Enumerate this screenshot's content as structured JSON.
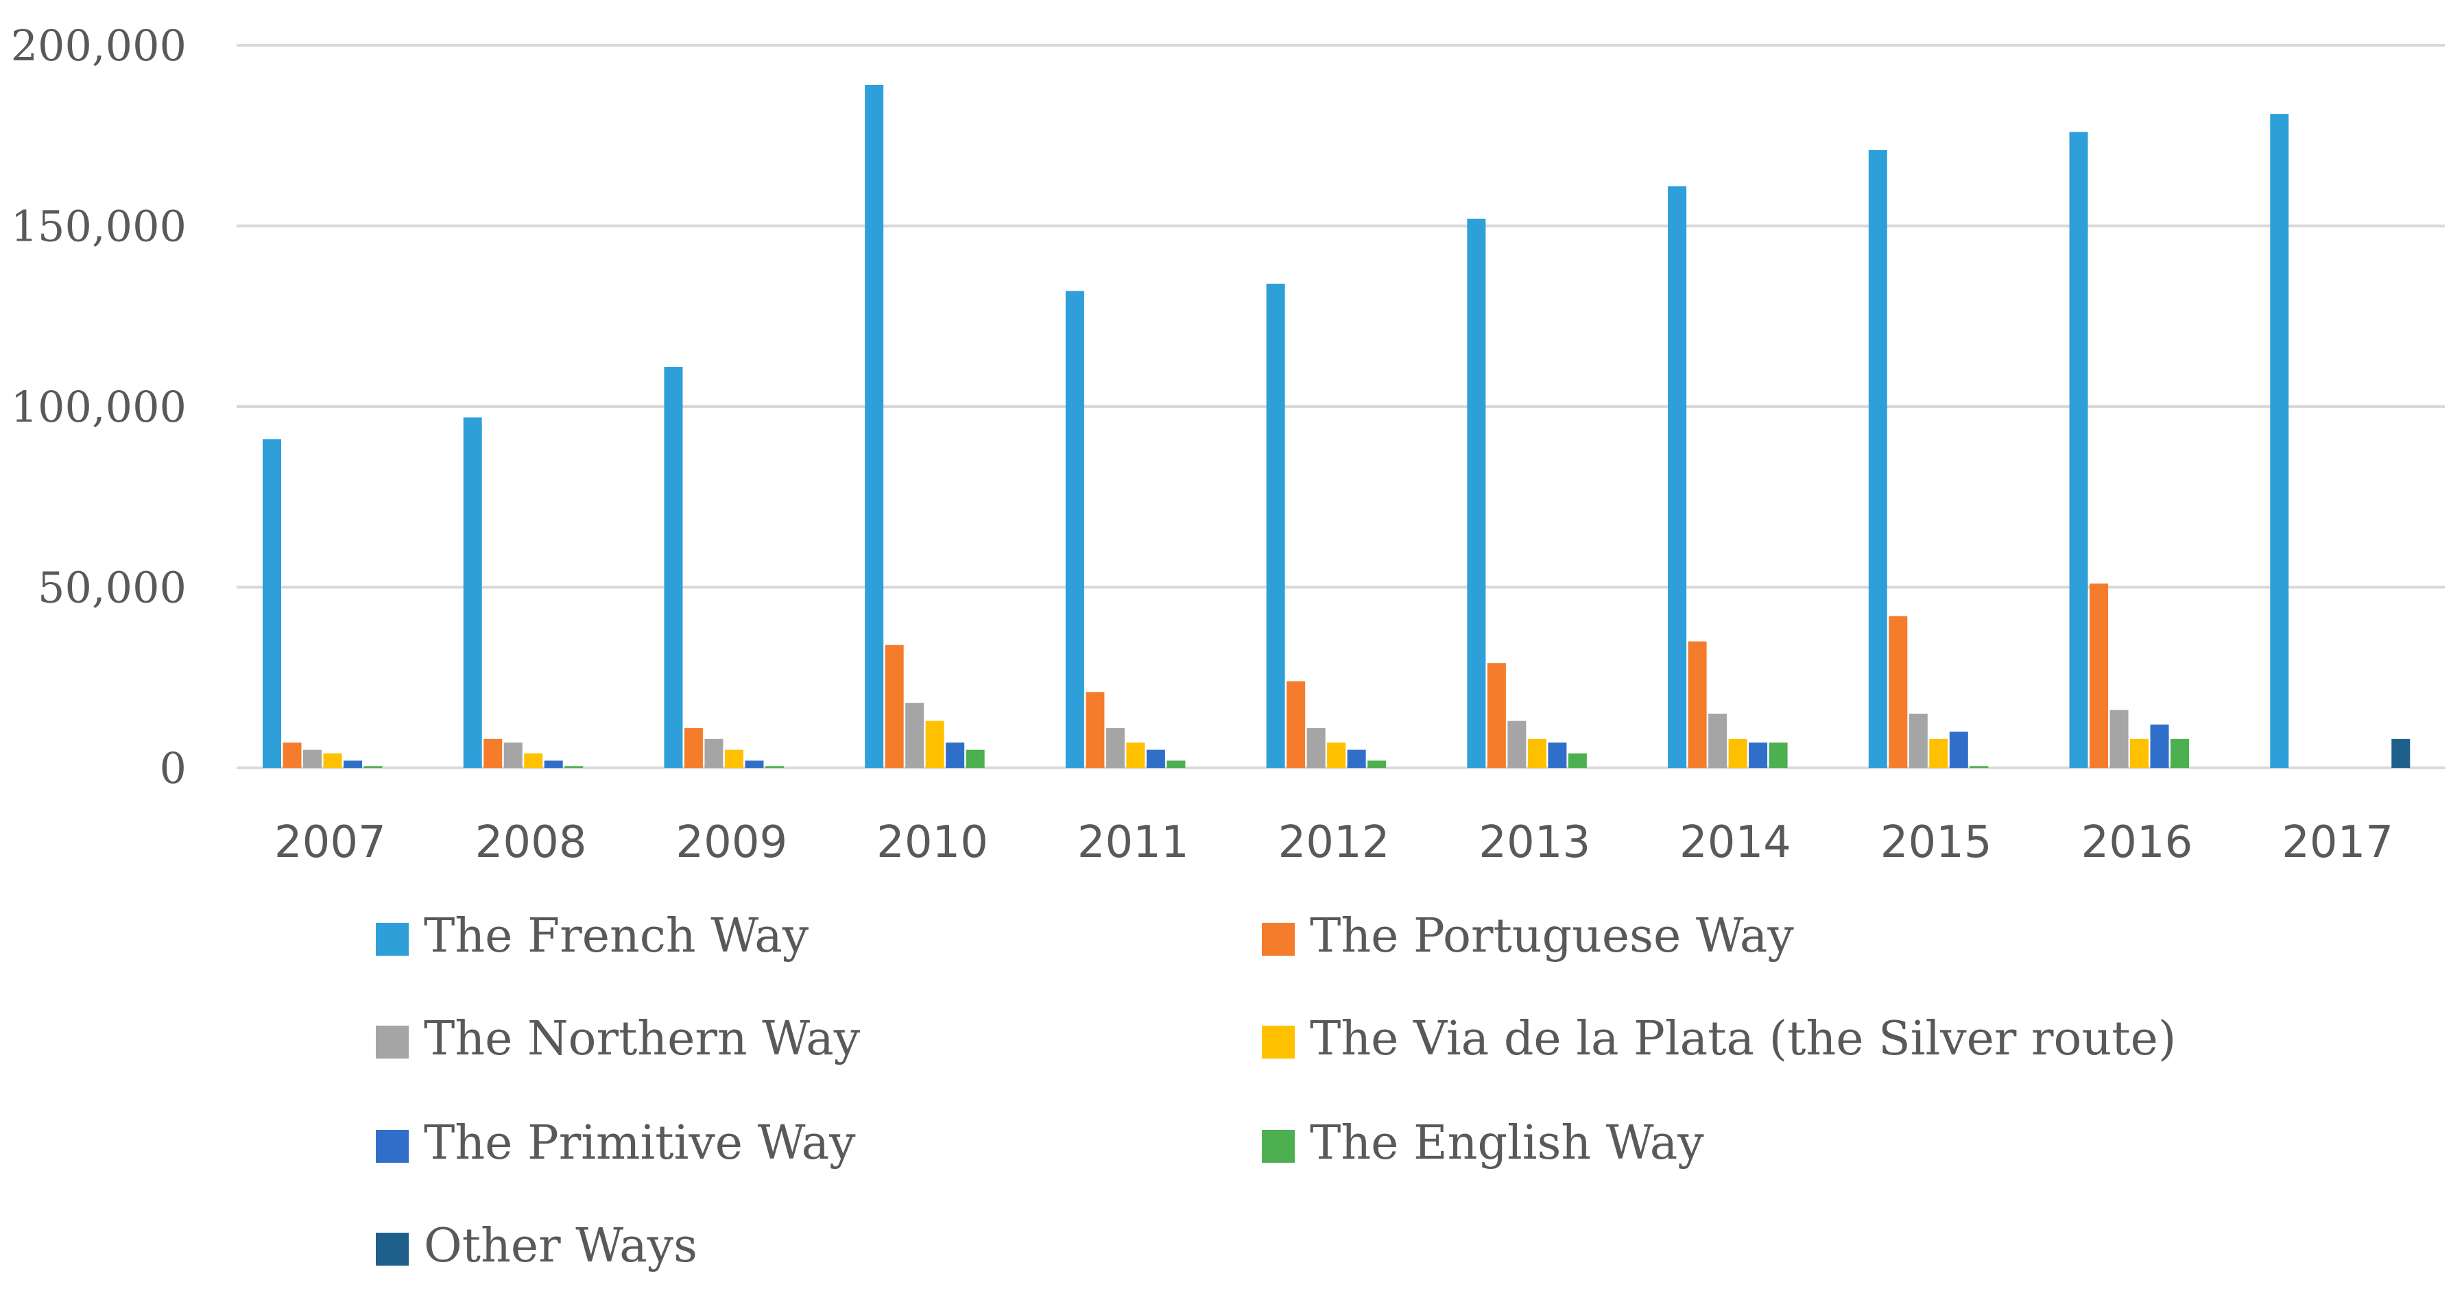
{
  "chart_data": {
    "type": "bar",
    "categories": [
      "2007",
      "2008",
      "2009",
      "2010",
      "2011",
      "2012",
      "2013",
      "2014",
      "2015",
      "2016",
      "2017"
    ],
    "series": [
      {
        "name": "The French Way",
        "color": "#2E9FD9",
        "values": [
          91000,
          97000,
          111000,
          189000,
          132000,
          134000,
          152000,
          161000,
          171000,
          176000,
          181000
        ]
      },
      {
        "name": "The Portuguese Way",
        "color": "#F47C2A",
        "values": [
          7000,
          8000,
          11000,
          34000,
          21000,
          24000,
          29000,
          35000,
          42000,
          51000,
          0
        ]
      },
      {
        "name": "The Northern Way",
        "color": "#A5A5A5",
        "values": [
          5000,
          7000,
          8000,
          18000,
          11000,
          11000,
          13000,
          15000,
          15000,
          16000,
          0
        ]
      },
      {
        "name": "The Via de la Plata (the Silver route)",
        "color": "#FFC000",
        "values": [
          4000,
          4000,
          5000,
          13000,
          7000,
          7000,
          8000,
          8000,
          8000,
          8000,
          0
        ]
      },
      {
        "name": "The Primitive Way",
        "color": "#2F6FC9",
        "values": [
          2000,
          2000,
          2000,
          7000,
          5000,
          5000,
          7000,
          7000,
          10000,
          12000,
          0
        ]
      },
      {
        "name": "The English Way",
        "color": "#4CAF50",
        "values": [
          500,
          500,
          500,
          5000,
          2000,
          2000,
          4000,
          7000,
          500,
          8000,
          0
        ]
      },
      {
        "name": "Other Ways",
        "color": "#1F5F8B",
        "values": [
          0,
          0,
          0,
          0,
          0,
          0,
          0,
          0,
          0,
          0,
          8000
        ]
      }
    ],
    "yticks": [
      "0",
      "50,000",
      "100,000",
      "150,000",
      "200,000"
    ],
    "ylim": [
      0,
      200000
    ],
    "grid": true,
    "legend_position": "bottom"
  }
}
